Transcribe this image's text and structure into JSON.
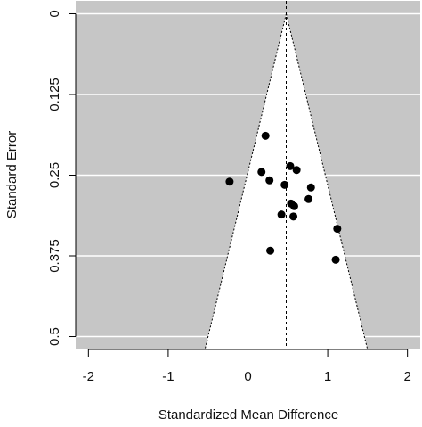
{
  "chart_data": {
    "type": "scatter",
    "xlabel": "Standardized Mean Difference",
    "ylabel": "Standard Error",
    "x": [
      0.22,
      -0.23,
      0.17,
      0.27,
      0.53,
      0.61,
      0.46,
      0.79,
      0.76,
      0.54,
      0.58,
      0.42,
      0.57,
      1.12,
      0.28,
      1.1
    ],
    "values": [
      0.189,
      0.26,
      0.245,
      0.258,
      0.236,
      0.242,
      0.265,
      0.269,
      0.287,
      0.294,
      0.298,
      0.311,
      0.314,
      0.333,
      0.367,
      0.381
    ],
    "color": "#000000",
    "reference_line": 0.48,
    "funnel_multiplier": 1.96,
    "xlim": [
      -2.16,
      2.16
    ],
    "xticks": [
      -2,
      -1,
      0,
      1,
      2
    ],
    "ylim": [
      -0.02,
      0.52
    ],
    "yticks": [
      0,
      0.125,
      0.25,
      0.375,
      0.5
    ],
    "y_reversed": true,
    "grid": true,
    "panel_color": "#c6c6c6"
  }
}
